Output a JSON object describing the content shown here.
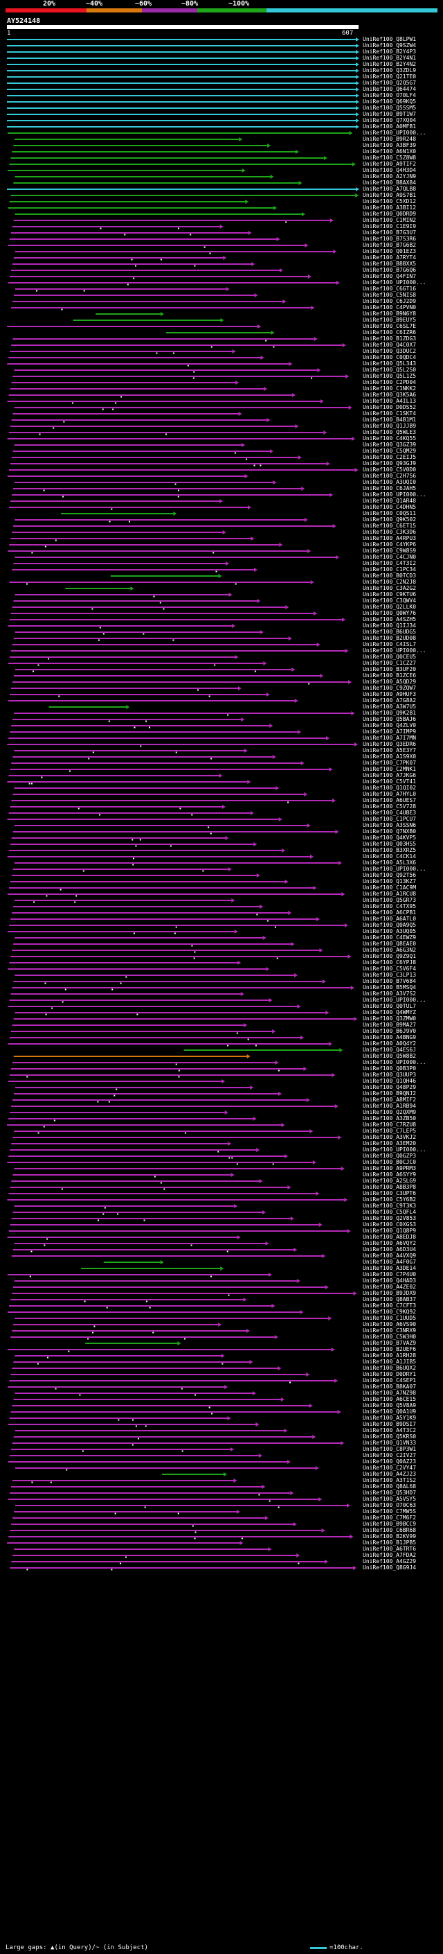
{
  "header": {
    "percent_labels": [
      "20%",
      "~40%",
      "~60%",
      "~80%",
      "~100%"
    ],
    "scale_colors": [
      "#e8141f",
      "#d8780f",
      "#9a2ba8",
      "#1ea51a",
      "#35c8d6"
    ]
  },
  "query": {
    "name": "AY524148",
    "start": "1",
    "end": "607"
  },
  "colors": {
    "cyan": "#35c8d6",
    "green": "#1ea51a",
    "magenta": "#b52ab8",
    "orange": "#d8780f",
    "gap": "#ffffff"
  },
  "hits": [
    {
      "label": "UniRef100_Q8LPW1",
      "color": "cyan"
    },
    {
      "label": "UniRef100_Q9SZW4",
      "color": "cyan"
    },
    {
      "label": "UniRef100_B2Y4P3",
      "color": "cyan"
    },
    {
      "label": "UniRef100_B2Y4N1",
      "color": "cyan"
    },
    {
      "label": "UniRef100_B2Y4N2",
      "color": "cyan"
    },
    {
      "label": "UniRef100_Q3ZDL9",
      "color": "cyan"
    },
    {
      "label": "UniRef100_Q21TE0",
      "color": "cyan"
    },
    {
      "label": "UniRef100_Q2Q5G7",
      "color": "cyan"
    },
    {
      "label": "UniRef100_Q64474",
      "color": "cyan"
    },
    {
      "label": "UniRef100_O70LF4",
      "color": "cyan"
    },
    {
      "label": "UniRef100_Q69KQ5",
      "color": "cyan"
    },
    {
      "label": "UniRef100_Q5SSM5",
      "color": "cyan"
    },
    {
      "label": "UniRef100_B9T1W7",
      "color": "cyan"
    },
    {
      "label": "UniRef100_Q7XQ04",
      "color": "cyan"
    },
    {
      "label": "UniRef100_A0MFB1",
      "color": "cyan"
    },
    {
      "label": "UniRef100_UPI000...",
      "color": "green"
    },
    {
      "label": "UniRef100_B9R248",
      "color": "green"
    },
    {
      "label": "UniRef100_A3BF39",
      "color": "green"
    },
    {
      "label": "UniRef100_A6N1X0",
      "color": "green"
    },
    {
      "label": "UniRef100_C5Z8W8",
      "color": "green"
    },
    {
      "label": "UniRef100_A9TIF2",
      "color": "green"
    },
    {
      "label": "UniRef100_Q4H3D4",
      "color": "green"
    },
    {
      "label": "UniRef100_A2YJN9",
      "color": "green"
    },
    {
      "label": "UniRef100_B8AX84",
      "color": "green"
    },
    {
      "label": "UniRef100_A7QLB8",
      "color": "cyan"
    },
    {
      "label": "UniRef100_A9S7B1",
      "color": "green"
    },
    {
      "label": "UniRef100_C5XD12",
      "color": "green"
    },
    {
      "label": "UniRef100_A3BI12",
      "color": "green"
    },
    {
      "label": "UniRef100_Q0DRD9",
      "color": "green"
    },
    {
      "label": "UniRef100_C1MIN2",
      "color": "magenta"
    },
    {
      "label": "UniRef100_C1E9I9",
      "color": "magenta"
    },
    {
      "label": "UniRef100_B7G3U7",
      "color": "magenta"
    },
    {
      "label": "UniRef100_B7S3R6",
      "color": "magenta"
    },
    {
      "label": "UniRef100_B7G6B2",
      "color": "magenta"
    },
    {
      "label": "UniRef100_Q01EZ3",
      "color": "magenta"
    },
    {
      "label": "UniRef100_A7RYT4",
      "color": "magenta"
    },
    {
      "label": "UniRef100_B8BXX5",
      "color": "magenta"
    },
    {
      "label": "UniRef100_B7G6Q6",
      "color": "magenta"
    },
    {
      "label": "UniRef100_Q4FIN7",
      "color": "magenta"
    },
    {
      "label": "UniRef100_UPI000...",
      "color": "magenta"
    },
    {
      "label": "UniRef100_C6GT16",
      "color": "magenta"
    },
    {
      "label": "UniRef100_C5NIS8",
      "color": "magenta"
    },
    {
      "label": "UniRef100_C6J2D9",
      "color": "magenta"
    },
    {
      "label": "UniRef100_C4PVN0",
      "color": "magenta"
    },
    {
      "label": "UniRef100_B9N6Y8",
      "color": "green"
    },
    {
      "label": "UniRef100_B9EUY5",
      "color": "green"
    },
    {
      "label": "UniRef100_C6SL7E",
      "color": "magenta"
    },
    {
      "label": "UniRef100_C6IZR6",
      "color": "green"
    },
    {
      "label": "UniRef100_B1ZDG3",
      "color": "magenta"
    },
    {
      "label": "UniRef100_Q4C0X7",
      "color": "magenta"
    },
    {
      "label": "UniRef100_Q3DUC2",
      "color": "magenta"
    },
    {
      "label": "UniRef100_C0QDC4",
      "color": "magenta"
    },
    {
      "label": "UniRef100_Q5L343",
      "color": "magenta"
    },
    {
      "label": "UniRef100_Q5L2S0",
      "color": "magenta"
    },
    {
      "label": "UniRef100_Q5L1Z5",
      "color": "magenta"
    },
    {
      "label": "UniRef100_C2PD04",
      "color": "magenta"
    },
    {
      "label": "UniRef100_C1NKK2",
      "color": "magenta"
    },
    {
      "label": "UniRef100_Q3K5A6",
      "color": "magenta"
    },
    {
      "label": "UniRef100_A4IL13",
      "color": "magenta"
    },
    {
      "label": "UniRef100_D0DS52",
      "color": "magenta"
    },
    {
      "label": "UniRef100_C1SKT4",
      "color": "magenta"
    },
    {
      "label": "UniRef100_B4B1M1",
      "color": "magenta"
    },
    {
      "label": "UniRef100_Q1JJB9",
      "color": "magenta"
    },
    {
      "label": "UniRef100_Q5WLE3",
      "color": "magenta"
    },
    {
      "label": "UniRef100_C4KQ55",
      "color": "magenta"
    },
    {
      "label": "UniRef100_Q3GZ39",
      "color": "magenta"
    },
    {
      "label": "UniRef100_C5QM29",
      "color": "magenta"
    },
    {
      "label": "UniRef100_C2EIJ5",
      "color": "magenta"
    },
    {
      "label": "UniRef100_Q93GJ9",
      "color": "magenta"
    },
    {
      "label": "UniRef100_C5V0D0",
      "color": "magenta"
    },
    {
      "label": "UniRef100_C2H7S6",
      "color": "magenta"
    },
    {
      "label": "UniRef100_A3UQI0",
      "color": "magenta"
    },
    {
      "label": "UniRef100_C6JAH5",
      "color": "magenta"
    },
    {
      "label": "UniRef100_UPI000...",
      "color": "magenta"
    },
    {
      "label": "UniRef100_Q1AR48",
      "color": "magenta"
    },
    {
      "label": "UniRef100_C4DHN5",
      "color": "magenta"
    },
    {
      "label": "UniRef100_C0QS11",
      "color": "green"
    },
    {
      "label": "UniRef100_Q9K502",
      "color": "magenta"
    },
    {
      "label": "UniRef100_C6ET15",
      "color": "magenta"
    },
    {
      "label": "UniRef100_C3K3D6",
      "color": "magenta"
    },
    {
      "label": "UniRef100_A4RPU3",
      "color": "magenta"
    },
    {
      "label": "UniRef100_C4YKP6",
      "color": "magenta"
    },
    {
      "label": "UniRef100_C9W8S9",
      "color": "magenta"
    },
    {
      "label": "UniRef100_C4CJN0",
      "color": "magenta"
    },
    {
      "label": "UniRef100_C4T3I2",
      "color": "magenta"
    },
    {
      "label": "UniRef100_C1PC34",
      "color": "magenta"
    },
    {
      "label": "UniRef100_B0TCD3",
      "color": "green"
    },
    {
      "label": "UniRef100_C2N2J8",
      "color": "magenta"
    },
    {
      "label": "UniRef100_C3A2G2",
      "color": "green"
    },
    {
      "label": "UniRef100_C9KTU6",
      "color": "magenta"
    },
    {
      "label": "UniRef100_C3QWV4",
      "color": "magenta"
    },
    {
      "label": "UniRef100_Q2LLK0",
      "color": "magenta"
    },
    {
      "label": "UniRef100_Q0WY76",
      "color": "magenta"
    },
    {
      "label": "UniRef100_A4SZH5",
      "color": "magenta"
    },
    {
      "label": "UniRef100_Q1IJ34",
      "color": "magenta"
    },
    {
      "label": "UniRef100_B6UDG5",
      "color": "magenta"
    },
    {
      "label": "UniRef100_B2UD08",
      "color": "magenta"
    },
    {
      "label": "UniRef100_C4ISL7",
      "color": "magenta"
    },
    {
      "label": "UniRef100_UPI000...",
      "color": "magenta"
    },
    {
      "label": "UniRef100_Q0CEU5",
      "color": "magenta"
    },
    {
      "label": "UniRef100_C1CZ27",
      "color": "magenta"
    },
    {
      "label": "UniRef100_B3UF20",
      "color": "magenta"
    },
    {
      "label": "UniRef100_B1ZCE6",
      "color": "magenta"
    },
    {
      "label": "UniRef100_A5QD29",
      "color": "magenta"
    },
    {
      "label": "UniRef100_C9ZQW7",
      "color": "magenta"
    },
    {
      "label": "UniRef100_A9HUF3",
      "color": "magenta"
    },
    {
      "label": "UniRef100_A7G8A2",
      "color": "magenta"
    },
    {
      "label": "UniRef100_A3W7U5",
      "color": "green"
    },
    {
      "label": "UniRef100_Q9K2B1",
      "color": "magenta"
    },
    {
      "label": "UniRef100_Q5BAJ6",
      "color": "magenta"
    },
    {
      "label": "UniRef100_Q4ZLV0",
      "color": "magenta"
    },
    {
      "label": "UniRef100_A7IMP9",
      "color": "magenta"
    },
    {
      "label": "UniRef100_A7I7MN",
      "color": "magenta"
    },
    {
      "label": "UniRef100_Q3EDR6",
      "color": "magenta"
    },
    {
      "label": "UniRef100_A5E3Y7",
      "color": "magenta"
    },
    {
      "label": "UniRef100_A1S9X0",
      "color": "magenta"
    },
    {
      "label": "UniRef100_C7PK07",
      "color": "magenta"
    },
    {
      "label": "UniRef100_C2MNK1",
      "color": "magenta"
    },
    {
      "label": "UniRef100_A7JKG6",
      "color": "magenta"
    },
    {
      "label": "UniRef100_C5VT41",
      "color": "magenta"
    },
    {
      "label": "UniRef100_Q1QI02",
      "color": "magenta"
    },
    {
      "label": "UniRef100_A7HYL0",
      "color": "magenta"
    },
    {
      "label": "UniRef100_A6UES7",
      "color": "magenta"
    },
    {
      "label": "UniRef100_C5V728",
      "color": "magenta"
    },
    {
      "label": "UniRef100_C4UBE3",
      "color": "magenta"
    },
    {
      "label": "UniRef100_C1PCU7",
      "color": "magenta"
    },
    {
      "label": "UniRef100_A3SSN6",
      "color": "magenta"
    },
    {
      "label": "UniRef100_Q7NXB0",
      "color": "magenta"
    },
    {
      "label": "UniRef100_Q4KVP5",
      "color": "magenta"
    },
    {
      "label": "UniRef100_Q03HS5",
      "color": "magenta"
    },
    {
      "label": "UniRef100_B3XRZ5",
      "color": "magenta"
    },
    {
      "label": "UniRef100_C4CK14",
      "color": "magenta"
    },
    {
      "label": "UniRef100_A5L3X6",
      "color": "magenta"
    },
    {
      "label": "UniRef100_UPI000...",
      "color": "magenta"
    },
    {
      "label": "UniRef100_Q92T56",
      "color": "magenta"
    },
    {
      "label": "UniRef100_Q13KZ7",
      "color": "magenta"
    },
    {
      "label": "UniRef100_C1AC9M",
      "color": "magenta"
    },
    {
      "label": "UniRef100_A1RCU8",
      "color": "magenta"
    },
    {
      "label": "UniRef100_Q5GR73",
      "color": "magenta"
    },
    {
      "label": "UniRef100_C4TX95",
      "color": "magenta"
    },
    {
      "label": "UniRef100_A6CPB1",
      "color": "magenta"
    },
    {
      "label": "UniRef100_A6ATL0",
      "color": "magenta"
    },
    {
      "label": "UniRef100_Q0A9Q5",
      "color": "magenta"
    },
    {
      "label": "UniRef100_A3UQ05",
      "color": "magenta"
    },
    {
      "label": "UniRef100_C4EWZ9",
      "color": "magenta"
    },
    {
      "label": "UniRef100_Q8EAE0",
      "color": "magenta"
    },
    {
      "label": "UniRef100_A6G3N2",
      "color": "magenta"
    },
    {
      "label": "UniRef100_Q9Z9Q1",
      "color": "magenta"
    },
    {
      "label": "UniRef100_C6YPJ8",
      "color": "magenta"
    },
    {
      "label": "UniRef100_C5V6F4",
      "color": "magenta"
    },
    {
      "label": "UniRef100_C3LP13",
      "color": "magenta"
    },
    {
      "label": "UniRef100_B7V684",
      "color": "magenta"
    },
    {
      "label": "UniRef100_B5MSQ4",
      "color": "magenta"
    },
    {
      "label": "UniRef100_A3V7S2",
      "color": "magenta"
    },
    {
      "label": "UniRef100_UPI000...",
      "color": "magenta"
    },
    {
      "label": "UniRef100_Q0TUL7",
      "color": "magenta"
    },
    {
      "label": "UniRef100_Q4WMYZ",
      "color": "magenta"
    },
    {
      "label": "UniRef100_Q3ZMW0",
      "color": "magenta"
    },
    {
      "label": "UniRef100_B9MA27",
      "color": "magenta"
    },
    {
      "label": "UniRef100_B6J9V0",
      "color": "magenta"
    },
    {
      "label": "UniRef100_A4BNG9",
      "color": "magenta"
    },
    {
      "label": "UniRef100_A0Q4Y2",
      "color": "magenta"
    },
    {
      "label": "UniRef100_Q4ES6J",
      "color": "green"
    },
    {
      "label": "UniRef100_Q5W8B2",
      "color": "orange"
    },
    {
      "label": "UniRef100_UPI000...",
      "color": "magenta"
    },
    {
      "label": "UniRef100_Q0B3P0",
      "color": "magenta"
    },
    {
      "label": "UniRef100_Q3UUP3",
      "color": "magenta"
    },
    {
      "label": "UniRef100_Q1QH46",
      "color": "magenta"
    },
    {
      "label": "UniRef100_Q48P29",
      "color": "magenta"
    },
    {
      "label": "UniRef100_B9QNJ2",
      "color": "magenta"
    },
    {
      "label": "UniRef100_A8MIF2",
      "color": "magenta"
    },
    {
      "label": "UniRef100_A1RB94",
      "color": "magenta"
    },
    {
      "label": "UniRef100_Q2QXM9",
      "color": "magenta"
    },
    {
      "label": "UniRef100_A3ZB50",
      "color": "magenta"
    },
    {
      "label": "UniRef100_C7RZU8",
      "color": "magenta"
    },
    {
      "label": "UniRef100_C7LEP5",
      "color": "magenta"
    },
    {
      "label": "UniRef100_A3VKJ2",
      "color": "magenta"
    },
    {
      "label": "UniRef100_A3EM20",
      "color": "magenta"
    },
    {
      "label": "UniRef100_UPI000...",
      "color": "magenta"
    },
    {
      "label": "UniRef100_Q0GZP3",
      "color": "magenta"
    },
    {
      "label": "UniRef100_B0CJC0",
      "color": "magenta"
    },
    {
      "label": "UniRef100_A9PRM3",
      "color": "magenta"
    },
    {
      "label": "UniRef100_A6SYY9",
      "color": "magenta"
    },
    {
      "label": "UniRef100_A2SLG9",
      "color": "magenta"
    },
    {
      "label": "UniRef100_A8B3P8",
      "color": "magenta"
    },
    {
      "label": "UniRef100_C3UPT6",
      "color": "magenta"
    },
    {
      "label": "UniRef100_C5Y6B2",
      "color": "magenta"
    },
    {
      "label": "UniRef100_C9T3K3",
      "color": "magenta"
    },
    {
      "label": "UniRef100_C5QFL4",
      "color": "magenta"
    },
    {
      "label": "UniRef100_Q2V853",
      "color": "magenta"
    },
    {
      "label": "UniRef100_C0XGS3",
      "color": "magenta"
    },
    {
      "label": "UniRef100_Q1Q8P9",
      "color": "magenta"
    },
    {
      "label": "UniRef100_A8EDJ8",
      "color": "magenta"
    },
    {
      "label": "UniRef100_A6VQY2",
      "color": "magenta"
    },
    {
      "label": "UniRef100_A6D3U4",
      "color": "magenta"
    },
    {
      "label": "UniRef100_A4VXQ9",
      "color": "magenta"
    },
    {
      "label": "UniRef100_A4F0G7",
      "color": "green"
    },
    {
      "label": "UniRef100_A3DE14",
      "color": "green"
    },
    {
      "label": "UniRef100_C7P4U0",
      "color": "magenta"
    },
    {
      "label": "UniRef100_Q4HAD3",
      "color": "magenta"
    },
    {
      "label": "UniRef100_A4ZE02",
      "color": "magenta"
    },
    {
      "label": "UniRef100_B9JDX9",
      "color": "magenta"
    },
    {
      "label": "UniRef100_Q8AB37",
      "color": "magenta"
    },
    {
      "label": "UniRef100_C7CFT3",
      "color": "magenta"
    },
    {
      "label": "UniRef100_C9KQ92",
      "color": "magenta"
    },
    {
      "label": "UniRef100_C1UUD5",
      "color": "magenta"
    },
    {
      "label": "UniRef100_A6VS90",
      "color": "magenta"
    },
    {
      "label": "UniRef100_C3NRX9",
      "color": "magenta"
    },
    {
      "label": "UniRef100_C5W3H0",
      "color": "magenta"
    },
    {
      "label": "UniRef100_B7VAZ9",
      "color": "green"
    },
    {
      "label": "UniRef100_B2UEF6",
      "color": "magenta"
    },
    {
      "label": "UniRef100_A1RH28",
      "color": "magenta"
    },
    {
      "label": "UniRef100_A1JIB5",
      "color": "magenta"
    },
    {
      "label": "UniRef100_B6UQX2",
      "color": "magenta"
    },
    {
      "label": "UniRef100_D0DRY1",
      "color": "magenta"
    },
    {
      "label": "UniRef100_C4SEP1",
      "color": "magenta"
    },
    {
      "label": "UniRef100_B8KA07",
      "color": "magenta"
    },
    {
      "label": "UniRef100_A7NZ98",
      "color": "magenta"
    },
    {
      "label": "UniRef100_A6CE15",
      "color": "magenta"
    },
    {
      "label": "UniRef100_Q5V8A9",
      "color": "magenta"
    },
    {
      "label": "UniRef100_Q0A1U9",
      "color": "magenta"
    },
    {
      "label": "UniRef100_A5Y1K9",
      "color": "magenta"
    },
    {
      "label": "UniRef100_B9DSI7",
      "color": "magenta"
    },
    {
      "label": "UniRef100_A4T3C2",
      "color": "magenta"
    },
    {
      "label": "UniRef100_Q5KRS0",
      "color": "magenta"
    },
    {
      "label": "UniRef100_Q1VN33",
      "color": "magenta"
    },
    {
      "label": "UniRef100_C8P3W1",
      "color": "magenta"
    },
    {
      "label": "UniRef100_C2IV27",
      "color": "magenta"
    },
    {
      "label": "UniRef100_Q0AZ23",
      "color": "magenta"
    },
    {
      "label": "UniRef100_C2VY47",
      "color": "magenta"
    },
    {
      "label": "UniRef100_A4ZJ23",
      "color": "green"
    },
    {
      "label": "UniRef100_A3T1S2",
      "color": "magenta"
    },
    {
      "label": "UniRef100_Q8AL68",
      "color": "magenta"
    },
    {
      "label": "UniRef100_Q53HD7",
      "color": "magenta"
    },
    {
      "label": "UniRef100_A5VSY5",
      "color": "magenta"
    },
    {
      "label": "UniRef100_O70C63",
      "color": "magenta"
    },
    {
      "label": "UniRef100_C7MW5S",
      "color": "magenta"
    },
    {
      "label": "UniRef100_C7M6F2",
      "color": "magenta"
    },
    {
      "label": "UniRef100_B9BCC9",
      "color": "magenta"
    },
    {
      "label": "UniRef100_C6BR68",
      "color": "magenta"
    },
    {
      "label": "UniRef100_B2KV99",
      "color": "magenta"
    },
    {
      "label": "UniRef100_B1JPB5",
      "color": "magenta"
    },
    {
      "label": "UniRef100_A6TRT6",
      "color": "magenta"
    },
    {
      "label": "UniRef100_A7FDA2",
      "color": "magenta"
    },
    {
      "label": "UniRef100_A4GZ29",
      "color": "magenta"
    },
    {
      "label": "UniRef100_Q8G9J4",
      "color": "magenta"
    }
  ],
  "legend": {
    "gaps_text": "Large gaps: ▲(in Query)/~ (in Subject)",
    "scale_text": "=100char."
  }
}
